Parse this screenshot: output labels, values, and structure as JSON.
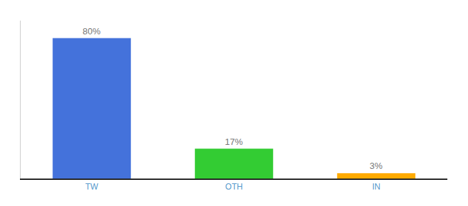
{
  "chart_data": {
    "type": "bar",
    "categories": [
      "TW",
      "OTH",
      "IN"
    ],
    "values": [
      80,
      17,
      3
    ],
    "value_labels": [
      "80%",
      "17%",
      "3%"
    ],
    "colors": [
      "#4472db",
      "#33cc33",
      "#ffaa00"
    ],
    "ylim": [
      0,
      90
    ],
    "data_labels": true,
    "tick_labels": "x",
    "grid": false
  }
}
